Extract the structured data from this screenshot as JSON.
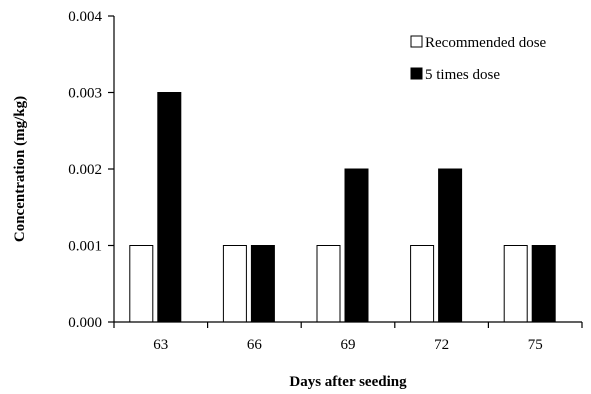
{
  "chart_data": {
    "type": "bar",
    "title": "",
    "xlabel": "Days after seeding",
    "ylabel": "Concentration (mg/kg)",
    "categories": [
      "63",
      "66",
      "69",
      "72",
      "75"
    ],
    "series": [
      {
        "name": "Recommended dose",
        "color": "#ffffff",
        "values": [
          0.001,
          0.001,
          0.001,
          0.001,
          0.001
        ]
      },
      {
        "name": "5 times dose",
        "color": "#000000",
        "values": [
          0.003,
          0.001,
          0.002,
          0.002,
          0.001
        ]
      }
    ],
    "ylim": [
      0,
      0.004
    ],
    "yticks": [
      "0.000",
      "0.001",
      "0.002",
      "0.003",
      "0.004"
    ],
    "grid": false,
    "legend_position": "top-right"
  }
}
